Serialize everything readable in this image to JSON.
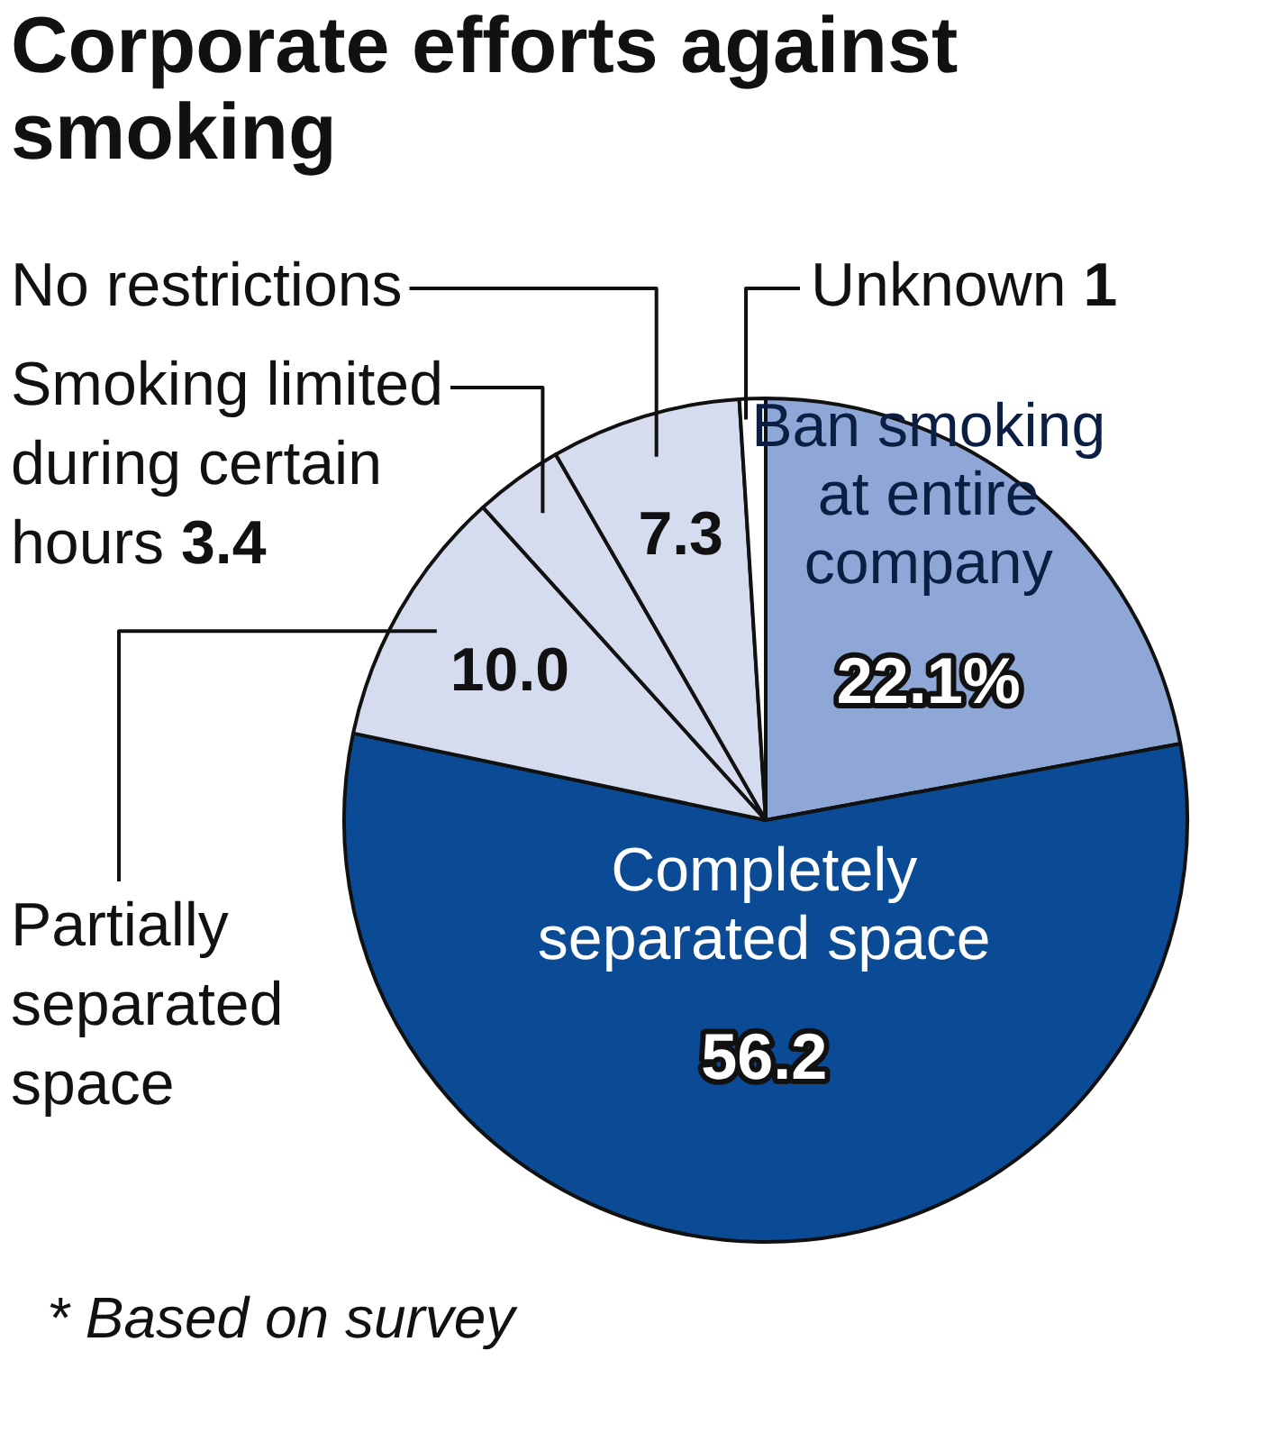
{
  "chart_data": {
    "type": "pie",
    "title": "Corporate efforts against smoking",
    "categories": [
      "Ban smoking at entire company",
      "Completely separated space",
      "Partially separated space",
      "Smoking limited during certain hours",
      "No restrictions",
      "Unknown"
    ],
    "values": [
      22.1,
      56.2,
      10.0,
      3.4,
      7.3,
      1
    ],
    "value_labels": [
      "22.1%",
      "56.2",
      "10.0",
      "3.4",
      "7.3",
      "1"
    ],
    "colors": [
      "#8fa7d6",
      "#0b4a94",
      "#d5dcef",
      "#d5dcef",
      "#d5dcef",
      "#ffffff"
    ],
    "legend": false,
    "annotations": [
      "* Based on survey"
    ]
  }
}
